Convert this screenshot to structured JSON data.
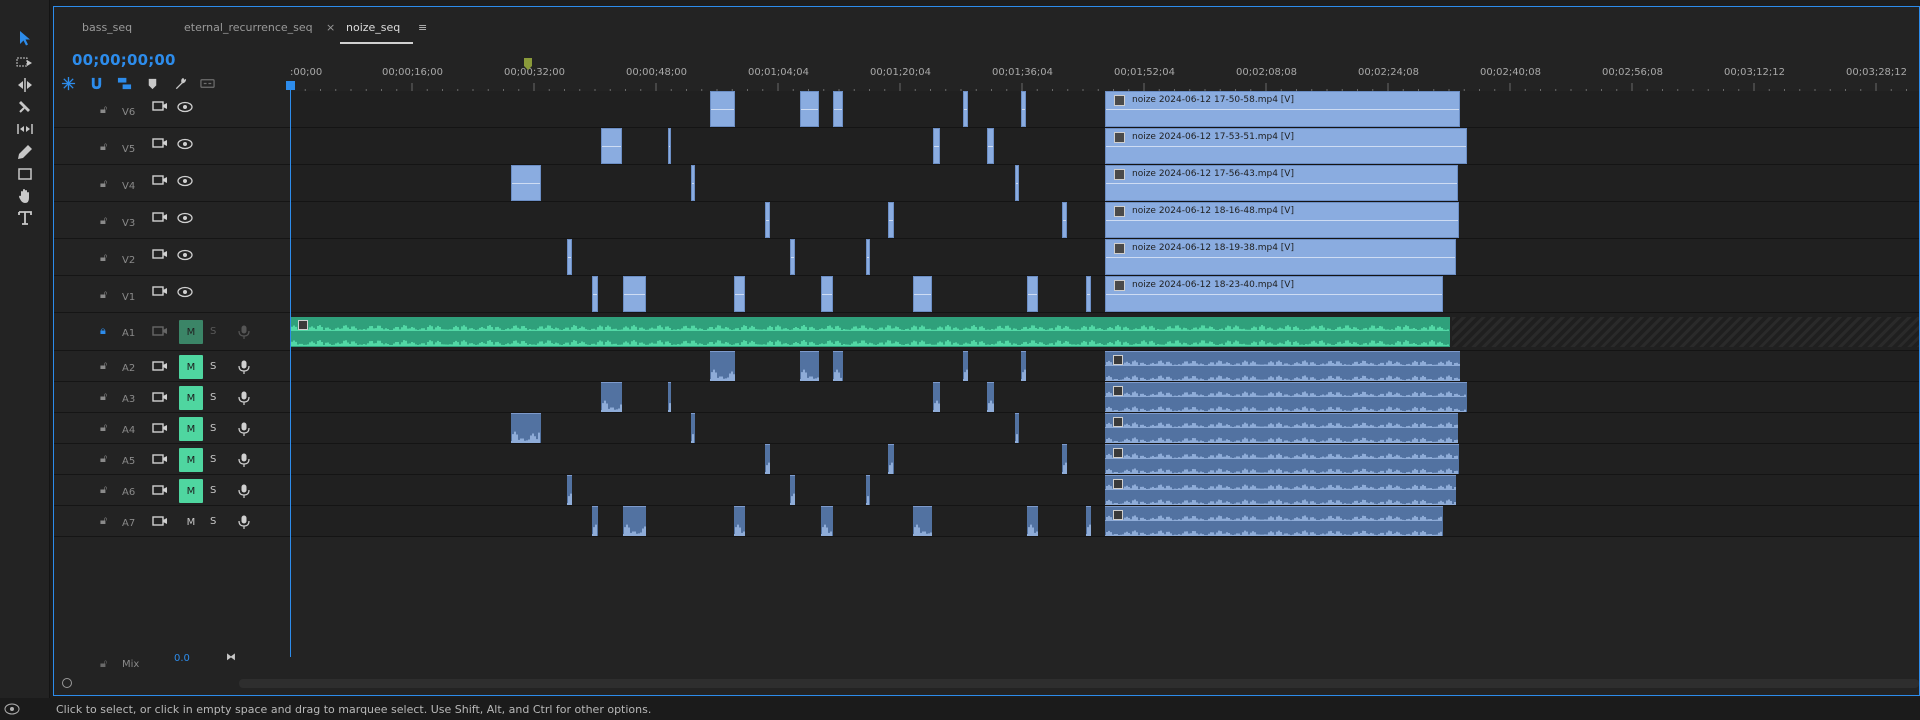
{
  "tabs": [
    {
      "label": "bass_seq",
      "active": false
    },
    {
      "label": "eternal_recurrence_seq",
      "active": false
    },
    {
      "label": "noize_seq",
      "active": true,
      "closable": true
    }
  ],
  "timeline": {
    "timecode": "00;00;00;00",
    "ruler_labels": [
      ":00;00",
      "00;00;16;00",
      "00;00;32;00",
      "00;00;48;00",
      "00;01;04;04",
      "00;01;20;04",
      "00;01;36;04",
      "00;01;52;04",
      "00;02;08;08",
      "00;02;24;08",
      "00;02;40;08",
      "00;02;56;08",
      "00;03;12;12",
      "00;03;28;12"
    ]
  },
  "video_tracks": [
    {
      "name": "V6",
      "clip_label": "noize 2024-06-12 17-50-58.mp4 [V]"
    },
    {
      "name": "V5",
      "clip_label": "noize 2024-06-12 17-53-51.mp4 [V]"
    },
    {
      "name": "V4",
      "clip_label": "noize 2024-06-12 17-56-43.mp4 [V]"
    },
    {
      "name": "V3",
      "clip_label": "noize 2024-06-12 18-16-48.mp4 [V]"
    },
    {
      "name": "V2",
      "clip_label": "noize 2024-06-12 18-19-38.mp4 [V]"
    },
    {
      "name": "V1",
      "clip_label": "noize 2024-06-12 18-23-40.mp4 [V]"
    }
  ],
  "audio_tracks": [
    {
      "name": "A1",
      "m_label": "M",
      "s_label": "S",
      "muted": true,
      "locked": true
    },
    {
      "name": "A2",
      "m_label": "M",
      "s_label": "S",
      "muted": true
    },
    {
      "name": "A3",
      "m_label": "M",
      "s_label": "S",
      "muted": true
    },
    {
      "name": "A4",
      "m_label": "M",
      "s_label": "S",
      "muted": true
    },
    {
      "name": "A5",
      "m_label": "M",
      "s_label": "S",
      "muted": true
    },
    {
      "name": "A6",
      "m_label": "M",
      "s_label": "S",
      "muted": true
    },
    {
      "name": "A7",
      "m_label": "M",
      "s_label": "S",
      "muted": false
    }
  ],
  "mix": {
    "name": "Mix",
    "value": "0.0"
  },
  "status_bar": {
    "text": "Click to select, or click in empty space and drag to marquee select. Use Shift, Alt, and Ctrl for other options."
  },
  "colors": {
    "accent": "#2d8ceb",
    "video_clip": "#8aace0",
    "audio_clip": "#5272a1",
    "audio_active": "#2fa07b",
    "mute_on": "#4fd6a0",
    "in_out_bar": "#e7d43a"
  },
  "icons": {
    "tools": [
      "selection-tool-icon",
      "track-select-forward-icon",
      "ripple-edit-icon",
      "razor-icon",
      "slip-icon",
      "pen-icon",
      "rectangle-icon",
      "hand-icon",
      "type-icon"
    ],
    "timeline_controls": [
      "snap-icon",
      "linked-selection-icon",
      "add-marker-icon",
      "marker-icon",
      "settings-wrench-icon",
      "captions-icon"
    ]
  }
}
